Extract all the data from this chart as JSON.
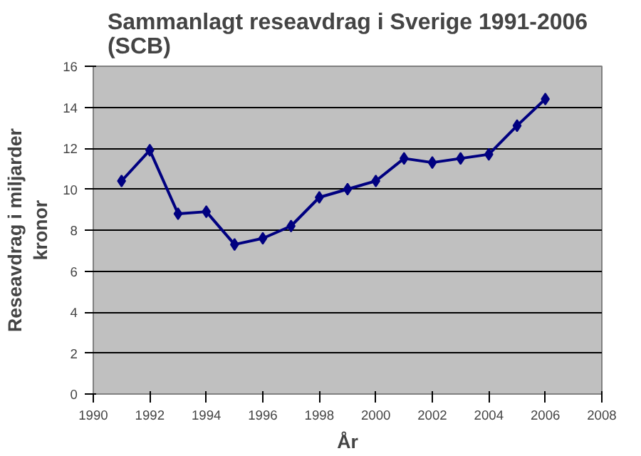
{
  "chart_data": {
    "type": "line",
    "title": "Sammanlagt reseavdrag i Sverige 1991-2006\n(SCB)",
    "xlabel": "År",
    "ylabel": "Reseavdrag i miljarder\nkronor",
    "x": [
      1991,
      1992,
      1993,
      1994,
      1995,
      1996,
      1997,
      1998,
      1999,
      2000,
      2001,
      2002,
      2003,
      2004,
      2005,
      2006
    ],
    "series": [
      {
        "color": "#000080",
        "values": [
          10.4,
          11.9,
          8.8,
          8.9,
          7.3,
          7.6,
          8.2,
          9.6,
          10.0,
          10.4,
          11.5,
          11.3,
          11.5,
          11.7,
          13.1,
          14.4
        ]
      }
    ],
    "xlim": [
      1990,
      2008
    ],
    "xticks": [
      1990,
      1992,
      1994,
      1996,
      1998,
      2000,
      2002,
      2004,
      2006,
      2008
    ],
    "ylim": [
      0,
      16
    ],
    "yticks": [
      0,
      2,
      4,
      6,
      8,
      10,
      12,
      14,
      16
    ],
    "grid": "y",
    "marker": "diamond",
    "line_style": "solid"
  }
}
